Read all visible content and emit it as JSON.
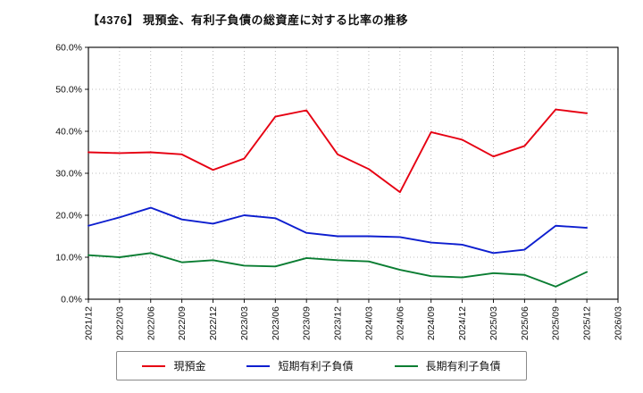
{
  "chart_data": {
    "type": "line",
    "title": "【4376】 現預金、有利子負債の総資産に対する比率の推移",
    "categories": [
      "2021/12",
      "2022/03",
      "2022/06",
      "2022/09",
      "2022/12",
      "2023/03",
      "2023/06",
      "2023/09",
      "2023/12",
      "2024/03",
      "2024/06",
      "2024/09",
      "2024/12",
      "2025/03",
      "2025/06",
      "2025/09",
      "2025/12",
      "2026/03"
    ],
    "series": [
      {
        "name": "現預金",
        "color": "#e60012",
        "values": [
          35.0,
          34.8,
          35.0,
          34.5,
          30.8,
          33.5,
          43.5,
          45.0,
          34.5,
          31.0,
          25.5,
          39.8,
          38.0,
          34.0,
          36.5,
          45.2,
          44.3
        ]
      },
      {
        "name": "短期有利子負債",
        "color": "#0d1ecf",
        "values": [
          17.5,
          19.5,
          21.8,
          19.0,
          18.0,
          20.0,
          19.3,
          15.8,
          15.0,
          15.0,
          14.8,
          13.5,
          13.0,
          11.0,
          11.8,
          17.5,
          17.0
        ]
      },
      {
        "name": "長期有利子負債",
        "color": "#0a7d32",
        "values": [
          10.5,
          10.0,
          11.0,
          8.8,
          9.3,
          8.0,
          7.8,
          9.8,
          9.3,
          9.0,
          7.0,
          5.5,
          5.2,
          6.2,
          5.8,
          3.0,
          6.5
        ]
      }
    ],
    "ylim": [
      0,
      60
    ],
    "y_tick_step": 10,
    "y_tick_suffix": "%",
    "grid": true,
    "legend_position": "bottom",
    "axis_color": "#000000",
    "grid_color": "#aaaaaa"
  }
}
